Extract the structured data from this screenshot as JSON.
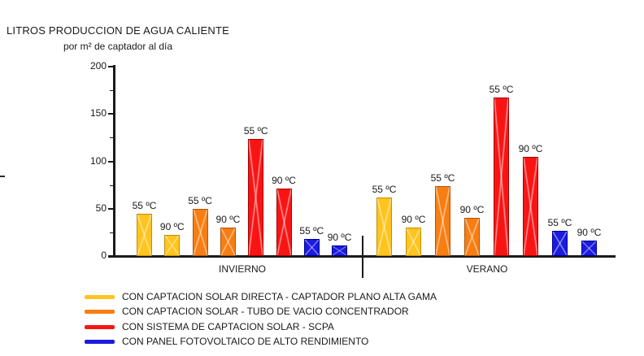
{
  "header": {
    "title": "LITROS PRODUCCION DE AGUA CALIENTE",
    "subtitle": "por m² de captador al día"
  },
  "chart_data": {
    "type": "bar",
    "title": "LITROS PRODUCCION DE AGUA CALIENTE",
    "subtitle": "por m² de captador al día",
    "xlabel": "",
    "ylabel": "",
    "ylim": [
      0,
      200
    ],
    "yticks": [
      0,
      50,
      100,
      150,
      200
    ],
    "minor_yticks": [
      25,
      75,
      125,
      175
    ],
    "grid": false,
    "legend_position": "bottom-left",
    "groups": [
      "INVIERNO",
      "VERANO"
    ],
    "temperature_labels": {
      "55": "55 ºC",
      "90": "90 ºC"
    },
    "series": [
      {
        "key": "captacion-solar-directa",
        "name": "CON CAPTACION SOLAR DIRECTA - CAPTADOR PLANO ALTA GAMA",
        "color": "#FFC41E",
        "border_color": "#C18F00",
        "values": {
          "INVIERNO": {
            "55": 45,
            "90": 22
          },
          "VERANO": {
            "55": 62,
            "90": 30
          }
        }
      },
      {
        "key": "tubo-de-vacio",
        "name": "CON CAPTACION SOLAR - TUBO DE VACIO CONCENTRADOR",
        "color": "#F87D12",
        "border_color": "#AE5506",
        "values": {
          "INVIERNO": {
            "55": 50,
            "90": 30
          },
          "VERANO": {
            "55": 74,
            "90": 40
          }
        }
      },
      {
        "key": "scpa",
        "name": "CON SISTEMA DE CAPTACION SOLAR - SCPA",
        "color": "#F91414",
        "border_color": "#A80000",
        "values": {
          "INVIERNO": {
            "55": 124,
            "90": 71
          },
          "VERANO": {
            "55": 167,
            "90": 105
          }
        }
      },
      {
        "key": "panel-fotovoltaico",
        "name": "CON PANEL FOTOVOLTAICO DE ALTO RENDIMIENTO",
        "color": "#1A1AE0",
        "border_color": "#00008F",
        "values": {
          "INVIERNO": {
            "55": 18,
            "90": 11
          },
          "VERANO": {
            "55": 27,
            "90": 16
          }
        }
      }
    ]
  }
}
